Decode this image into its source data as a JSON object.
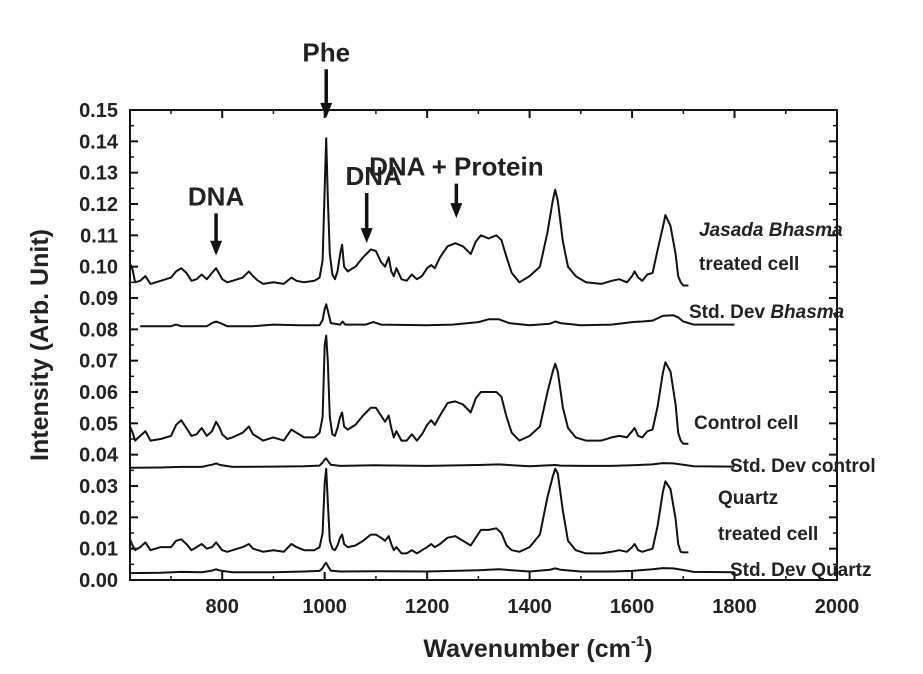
{
  "chart_data": {
    "type": "line",
    "xlabel": "Wavenumber (cm",
    "xlabel_sup": "-1",
    "xlabel_close": ")",
    "ylabel": "Intensity (Arb. Unit)",
    "xlim": [
      620,
      2000
    ],
    "ylim": [
      0.0,
      0.15
    ],
    "xticks": [
      "800",
      "1000",
      "1200",
      "1400",
      "1600",
      "1800",
      "2000"
    ],
    "yticks": [
      "0.00",
      "0.01",
      "0.02",
      "0.03",
      "0.04",
      "0.05",
      "0.06",
      "0.07",
      "0.08",
      "0.09",
      "0.10",
      "0.11",
      "0.12",
      "0.13",
      "0.14",
      "0.15"
    ],
    "annotations": [
      {
        "text": "Phe",
        "x": 1003,
        "arrow_from": 0.163,
        "arrow_to": 0.1475
      },
      {
        "text": "DNA",
        "x": 788,
        "arrow_from": 0.117,
        "arrow_to": 0.1035
      },
      {
        "text": "DNA",
        "x": 1082,
        "arrow_from": 0.1235,
        "arrow_to": 0.1075
      },
      {
        "text": "DNA + Protein",
        "x": 1257,
        "arrow_from": 0.1265,
        "arrow_to": 0.1155
      }
    ],
    "series": [
      {
        "label_lines": [
          [
            {
              "text": "Jasada Bhasma",
              "italic": true
            }
          ],
          [
            {
              "text": "treated cell",
              "italic": false
            }
          ]
        ],
        "x": [
          620,
          625,
          630,
          640,
          650,
          660,
          680,
          700,
          710,
          720,
          730,
          740,
          750,
          760,
          770,
          780,
          788,
          795,
          800,
          810,
          820,
          840,
          852,
          860,
          870,
          880,
          900,
          920,
          935,
          945,
          960,
          980,
          990,
          996,
          1000,
          1003,
          1006,
          1010,
          1015,
          1020,
          1025,
          1030,
          1034,
          1038,
          1045,
          1060,
          1075,
          1090,
          1100,
          1110,
          1118,
          1125,
          1130,
          1135,
          1140,
          1150,
          1160,
          1170,
          1180,
          1190,
          1200,
          1208,
          1215,
          1225,
          1240,
          1255,
          1270,
          1285,
          1295,
          1305,
          1320,
          1335,
          1345,
          1355,
          1365,
          1380,
          1400,
          1420,
          1435,
          1445,
          1450,
          1455,
          1465,
          1475,
          1490,
          1510,
          1540,
          1560,
          1575,
          1590,
          1600,
          1605,
          1612,
          1620,
          1630,
          1640,
          1650,
          1660,
          1665,
          1675,
          1685,
          1690,
          1695,
          1700,
          1710
        ],
        "y": [
          0.101,
          0.099,
          0.095,
          0.0955,
          0.097,
          0.0945,
          0.0955,
          0.0965,
          0.0985,
          0.0995,
          0.098,
          0.0955,
          0.096,
          0.0975,
          0.096,
          0.098,
          0.0995,
          0.0975,
          0.096,
          0.095,
          0.0955,
          0.0965,
          0.0985,
          0.097,
          0.0955,
          0.0945,
          0.095,
          0.0945,
          0.0965,
          0.0955,
          0.095,
          0.0955,
          0.0965,
          0.102,
          0.125,
          0.141,
          0.122,
          0.104,
          0.0975,
          0.096,
          0.0985,
          0.104,
          0.107,
          0.1,
          0.0985,
          0.1,
          0.103,
          0.1055,
          0.105,
          0.1015,
          0.1,
          0.103,
          0.0985,
          0.097,
          0.0995,
          0.096,
          0.0955,
          0.0975,
          0.096,
          0.097,
          0.0995,
          0.1005,
          0.0995,
          0.103,
          0.1065,
          0.1075,
          0.1065,
          0.104,
          0.108,
          0.11,
          0.109,
          0.11,
          0.1085,
          0.103,
          0.098,
          0.095,
          0.097,
          0.1,
          0.111,
          0.121,
          0.1245,
          0.121,
          0.108,
          0.1,
          0.097,
          0.095,
          0.0945,
          0.0955,
          0.096,
          0.095,
          0.097,
          0.0985,
          0.0965,
          0.0955,
          0.0975,
          0.098,
          0.1055,
          0.1125,
          0.1165,
          0.113,
          0.104,
          0.097,
          0.095,
          0.094,
          0.094
        ]
      },
      {
        "label_lines": [
          [
            {
              "text": "Std. Dev ",
              "italic": false
            },
            {
              "text": "Bhasma",
              "italic": true
            }
          ]
        ],
        "x": [
          640,
          680,
          700,
          710,
          720,
          750,
          770,
          780,
          788,
          796,
          810,
          860,
          900,
          950,
          990,
          996,
          1000,
          1003,
          1006,
          1012,
          1030,
          1035,
          1040,
          1080,
          1095,
          1110,
          1200,
          1250,
          1300,
          1320,
          1340,
          1360,
          1400,
          1440,
          1450,
          1460,
          1500,
          1560,
          1600,
          1620,
          1640,
          1660,
          1680,
          1690,
          1700,
          1720,
          1800
        ],
        "y": [
          0.081,
          0.081,
          0.081,
          0.0815,
          0.081,
          0.081,
          0.081,
          0.082,
          0.0825,
          0.082,
          0.081,
          0.081,
          0.0815,
          0.0813,
          0.0813,
          0.083,
          0.0865,
          0.088,
          0.086,
          0.082,
          0.0815,
          0.0825,
          0.0815,
          0.0815,
          0.0823,
          0.0815,
          0.0813,
          0.0815,
          0.0823,
          0.0832,
          0.0832,
          0.082,
          0.0813,
          0.0818,
          0.0825,
          0.082,
          0.0813,
          0.0815,
          0.0823,
          0.0825,
          0.0828,
          0.0843,
          0.0845,
          0.0838,
          0.0825,
          0.0815,
          0.0815
        ]
      },
      {
        "label_lines": [
          [
            {
              "text": "Control cell",
              "italic": false
            }
          ]
        ],
        "x": [
          620,
          625,
          630,
          640,
          650,
          660,
          680,
          700,
          710,
          720,
          730,
          740,
          750,
          760,
          770,
          780,
          788,
          795,
          800,
          810,
          820,
          840,
          852,
          860,
          870,
          880,
          900,
          920,
          935,
          945,
          960,
          980,
          990,
          996,
          1000,
          1003,
          1006,
          1010,
          1015,
          1020,
          1025,
          1030,
          1034,
          1038,
          1045,
          1060,
          1075,
          1090,
          1100,
          1110,
          1118,
          1125,
          1130,
          1135,
          1140,
          1150,
          1160,
          1170,
          1180,
          1190,
          1200,
          1208,
          1215,
          1225,
          1240,
          1255,
          1270,
          1285,
          1295,
          1305,
          1320,
          1335,
          1345,
          1355,
          1365,
          1380,
          1400,
          1420,
          1435,
          1445,
          1450,
          1455,
          1465,
          1475,
          1490,
          1510,
          1540,
          1560,
          1575,
          1590,
          1600,
          1605,
          1612,
          1620,
          1630,
          1640,
          1650,
          1660,
          1665,
          1675,
          1685,
          1690,
          1695,
          1700,
          1710
        ],
        "y": [
          0.049,
          0.047,
          0.0445,
          0.046,
          0.0475,
          0.0445,
          0.045,
          0.046,
          0.0495,
          0.051,
          0.0485,
          0.046,
          0.0465,
          0.0485,
          0.046,
          0.0475,
          0.0505,
          0.0485,
          0.0465,
          0.045,
          0.0455,
          0.047,
          0.049,
          0.0465,
          0.0455,
          0.0445,
          0.0455,
          0.0445,
          0.048,
          0.047,
          0.0455,
          0.0455,
          0.047,
          0.052,
          0.075,
          0.078,
          0.07,
          0.052,
          0.0465,
          0.046,
          0.0485,
          0.052,
          0.0535,
          0.049,
          0.048,
          0.0495,
          0.0525,
          0.055,
          0.055,
          0.0525,
          0.0505,
          0.0525,
          0.0485,
          0.0455,
          0.0475,
          0.0445,
          0.0445,
          0.0465,
          0.0445,
          0.0465,
          0.0495,
          0.051,
          0.0495,
          0.0525,
          0.0565,
          0.057,
          0.056,
          0.0535,
          0.058,
          0.06,
          0.06,
          0.06,
          0.0585,
          0.052,
          0.047,
          0.0445,
          0.046,
          0.049,
          0.06,
          0.0665,
          0.069,
          0.0665,
          0.055,
          0.0485,
          0.0455,
          0.0445,
          0.0445,
          0.0455,
          0.046,
          0.0455,
          0.0475,
          0.0485,
          0.046,
          0.0455,
          0.0475,
          0.048,
          0.0555,
          0.066,
          0.0695,
          0.0665,
          0.056,
          0.047,
          0.0445,
          0.0435,
          0.0435
        ]
      },
      {
        "label_lines": [
          [
            {
              "text": "Std. Dev control",
              "italic": false
            }
          ]
        ],
        "x": [
          620,
          680,
          720,
          760,
          780,
          788,
          796,
          820,
          900,
          960,
          990,
          996,
          1000,
          1003,
          1006,
          1012,
          1030,
          1100,
          1200,
          1300,
          1340,
          1400,
          1450,
          1460,
          1500,
          1560,
          1600,
          1640,
          1660,
          1680,
          1700,
          1720,
          1800
        ],
        "y": [
          0.0358,
          0.0359,
          0.0361,
          0.0361,
          0.0368,
          0.0372,
          0.0367,
          0.0361,
          0.0362,
          0.0363,
          0.0365,
          0.0375,
          0.0385,
          0.0388,
          0.038,
          0.0368,
          0.0364,
          0.0366,
          0.0364,
          0.0367,
          0.0369,
          0.0363,
          0.0367,
          0.0365,
          0.0364,
          0.0364,
          0.0366,
          0.0369,
          0.0373,
          0.0372,
          0.0368,
          0.0363,
          0.0362
        ]
      },
      {
        "label_lines": [
          [
            {
              "text": "Quartz",
              "italic": false
            }
          ],
          [
            {
              "text": "treated cell",
              "italic": false
            }
          ]
        ],
        "x": [
          620,
          625,
          630,
          640,
          650,
          660,
          680,
          700,
          710,
          720,
          730,
          740,
          750,
          760,
          770,
          780,
          788,
          795,
          800,
          810,
          820,
          840,
          852,
          860,
          870,
          880,
          900,
          920,
          935,
          945,
          960,
          980,
          990,
          996,
          1000,
          1003,
          1006,
          1010,
          1015,
          1020,
          1025,
          1030,
          1034,
          1038,
          1045,
          1060,
          1075,
          1090,
          1100,
          1110,
          1118,
          1125,
          1130,
          1135,
          1140,
          1150,
          1160,
          1170,
          1180,
          1190,
          1200,
          1208,
          1215,
          1225,
          1240,
          1255,
          1270,
          1285,
          1295,
          1305,
          1320,
          1335,
          1345,
          1355,
          1365,
          1380,
          1400,
          1420,
          1435,
          1445,
          1450,
          1455,
          1465,
          1475,
          1490,
          1510,
          1540,
          1560,
          1575,
          1590,
          1600,
          1605,
          1612,
          1620,
          1630,
          1640,
          1650,
          1660,
          1665,
          1675,
          1685,
          1690,
          1695,
          1700,
          1710
        ],
        "y": [
          0.013,
          0.011,
          0.0095,
          0.0105,
          0.012,
          0.0095,
          0.0105,
          0.0105,
          0.0125,
          0.013,
          0.0115,
          0.0095,
          0.0105,
          0.0115,
          0.01,
          0.0105,
          0.012,
          0.0105,
          0.0095,
          0.009,
          0.0095,
          0.0105,
          0.0115,
          0.01,
          0.0095,
          0.009,
          0.0095,
          0.009,
          0.0115,
          0.0105,
          0.0095,
          0.0095,
          0.0105,
          0.015,
          0.031,
          0.0355,
          0.025,
          0.0125,
          0.01,
          0.0095,
          0.011,
          0.0135,
          0.0145,
          0.0115,
          0.0105,
          0.011,
          0.0125,
          0.0145,
          0.0145,
          0.0135,
          0.0125,
          0.014,
          0.0115,
          0.0095,
          0.0105,
          0.0085,
          0.0085,
          0.0095,
          0.0085,
          0.0095,
          0.0105,
          0.0115,
          0.0105,
          0.0115,
          0.0135,
          0.014,
          0.0125,
          0.011,
          0.0135,
          0.016,
          0.016,
          0.0165,
          0.015,
          0.011,
          0.0095,
          0.009,
          0.0105,
          0.0145,
          0.0265,
          0.033,
          0.0355,
          0.034,
          0.022,
          0.0125,
          0.0095,
          0.0085,
          0.0085,
          0.009,
          0.0095,
          0.009,
          0.0105,
          0.0115,
          0.0095,
          0.009,
          0.0095,
          0.01,
          0.0175,
          0.028,
          0.0315,
          0.029,
          0.0195,
          0.0115,
          0.009,
          0.0088,
          0.0088
        ]
      },
      {
        "label_lines": [
          [
            {
              "text": "Std. Dev Quartz",
              "italic": false
            }
          ]
        ],
        "x": [
          620,
          680,
          720,
          760,
          780,
          788,
          796,
          820,
          900,
          960,
          990,
          996,
          1000,
          1003,
          1006,
          1012,
          1030,
          1100,
          1200,
          1300,
          1340,
          1400,
          1440,
          1450,
          1460,
          1500,
          1560,
          1600,
          1640,
          1660,
          1680,
          1700,
          1720,
          1800
        ],
        "y": [
          0.0022,
          0.0023,
          0.0026,
          0.0025,
          0.003,
          0.0034,
          0.003,
          0.0025,
          0.0025,
          0.0027,
          0.0029,
          0.0038,
          0.005,
          0.0055,
          0.0045,
          0.003,
          0.0027,
          0.0028,
          0.0027,
          0.0031,
          0.0034,
          0.0027,
          0.0033,
          0.0037,
          0.0033,
          0.0027,
          0.0027,
          0.0029,
          0.0034,
          0.0038,
          0.0037,
          0.0032,
          0.0026,
          0.0025
        ]
      }
    ]
  }
}
